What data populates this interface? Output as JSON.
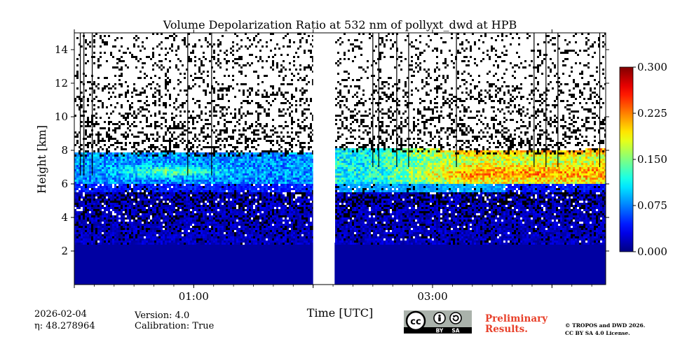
{
  "chart_data": {
    "type": "heatmap",
    "title": "Volume Depolarization Ratio at 532 nm of pollyxt_dwd at HPB",
    "xlabel": "Time [UTC]",
    "ylabel": "Height [km]",
    "x_tick_labels": [
      "01:00",
      "03:00"
    ],
    "y_tick_labels": [
      "2",
      "4",
      "6",
      "8",
      "10",
      "12",
      "14"
    ],
    "y_ticks": [
      2,
      4,
      6,
      8,
      10,
      12,
      14
    ],
    "ylim": [
      0,
      15
    ],
    "xlim_hours": [
      0.0,
      4.45
    ],
    "data_gap_hours": [
      2.0,
      2.18
    ],
    "colorbar": {
      "range": [
        0.0,
        0.3
      ],
      "tick_labels": [
        "0.000",
        "0.075",
        "0.150",
        "0.225",
        "0.300"
      ],
      "ticks": [
        0.0,
        0.075,
        0.15,
        0.225,
        0.3
      ],
      "colormap": "jet"
    },
    "regions": [
      {
        "name": "aerosol near-surface",
        "t_start": 0.0,
        "t_end": 4.45,
        "h_min": 0.0,
        "h_max": 2.5,
        "value": 0.01
      },
      {
        "name": "cloud layer (early)",
        "t_start": 0.0,
        "t_end": 2.0,
        "h_min": 6.0,
        "h_max": 8.0,
        "value": 0.09
      },
      {
        "name": "cloud layer (late, high depol)",
        "t_start": 2.6,
        "t_end": 4.45,
        "h_min": 6.0,
        "h_max": 8.2,
        "value": 0.19
      }
    ]
  },
  "footer": {
    "date": "2026-02-04",
    "eta": "η: 48.278964",
    "version": "Version: 4.0",
    "calibration": "Calibration: True",
    "prelim_line1": "Preliminary",
    "prelim_line2": "Results.",
    "copyright_line1": "© TROPOS and DWD 2026.",
    "copyright_line2": "CC BY SA 4.0 License.",
    "license_badge": {
      "cc": "cc",
      "by": "BY",
      "sa": "SA"
    }
  }
}
